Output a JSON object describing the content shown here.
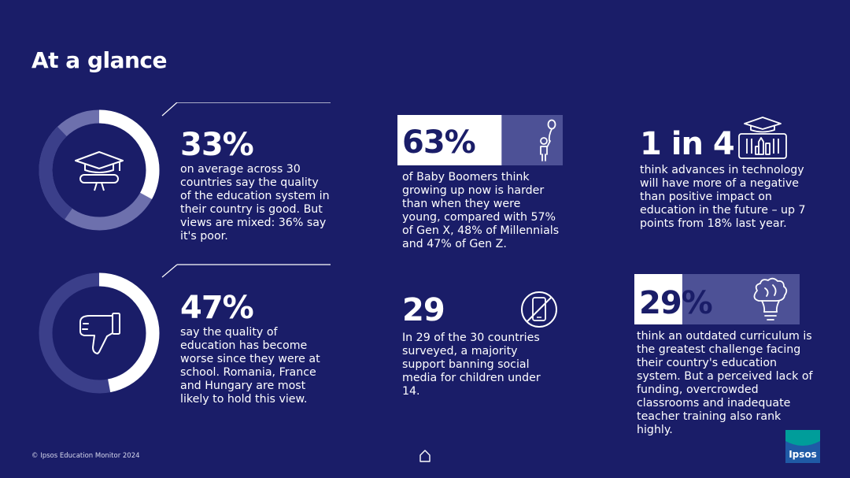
{
  "title": "At a glance",
  "colors": {
    "background": "#1a1d68",
    "ring_light": "#ffffff",
    "ring_mid": "#6d70ad",
    "ring_dark": "#3b3f8a",
    "box_fill": "#4d5196",
    "ipsos_green": "#009d9a",
    "ipsos_blue": "#1f5aa6"
  },
  "stats": [
    {
      "value": "33%",
      "ring_share": 0.33,
      "icon": "graduation-cap-diploma-icon",
      "text": "on average across 30 countries say the quality of the education system in their country is good. But views are mixed: 36% say it's poor."
    },
    {
      "value": "47%",
      "ring_share": 0.47,
      "icon": "thumbs-down-icon",
      "text": "say the quality of education has become worse since they were at school. Romania, France and Hungary are most likely to hold this view."
    },
    {
      "value": "63%",
      "share": 0.63,
      "icon": "child-balloon-icon",
      "text": "of Baby Boomers think growing up now is harder than when they were young, compared with 57% of Gen X, 48% of Millennials and 47% of Gen Z."
    },
    {
      "value": "29",
      "icon": "no-phone-icon",
      "text": "In 29 of the 30 countries surveyed, a majority support banning social media for children under 14."
    },
    {
      "value": "1 in 4",
      "icon": "school-building-icon",
      "text": "think advances in technology will have more of a negative than positive impact on education in the future – up 7 points from 18% last year."
    },
    {
      "value": "29%",
      "share": 0.29,
      "icon": "lightbulb-brain-icon",
      "text": "think an outdated curriculum is the greatest challenge facing their country's education system. But a perceived lack of funding, overcrowded classrooms and inadequate teacher training also rank highly."
    }
  ],
  "footer": {
    "copyright": "© Ipsos Education Monitor 2024",
    "home_icon": "home-icon",
    "logo_text": "Ipsos"
  }
}
